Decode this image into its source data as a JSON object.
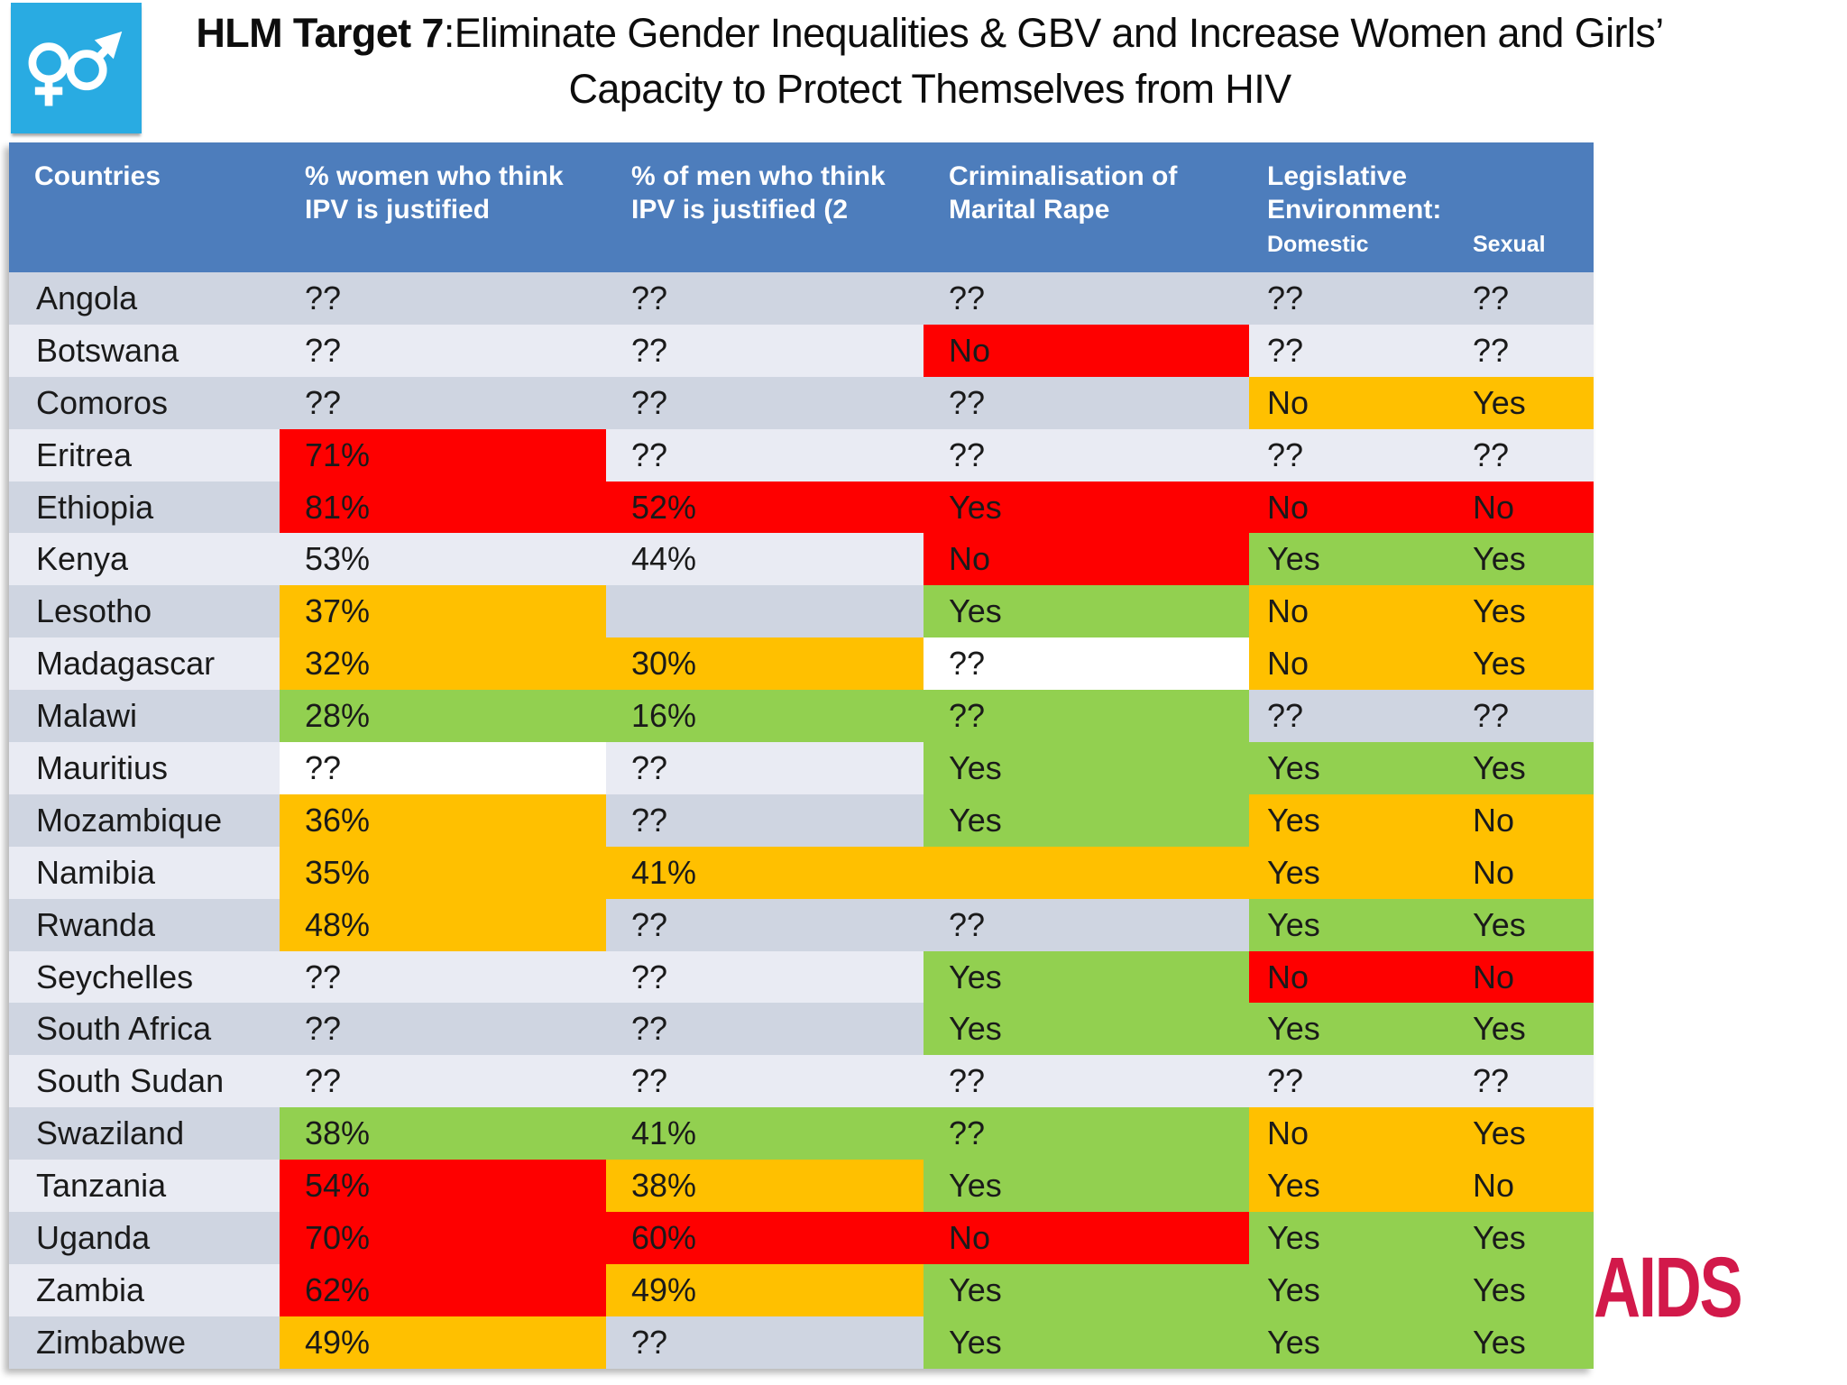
{
  "title": {
    "bold": "HLM Target 7",
    "line1_rest": ":Eliminate Gender Inequalities & GBV and Increase Women and Girls’",
    "line2": "Capacity to Protect Themselves from HIV"
  },
  "icon": {
    "name": "interlocked-female-male-gender-symbols"
  },
  "logo": {
    "text": "AIDS"
  },
  "palette": {
    "header_blue": "#4D7DBC",
    "row_dark": "#CFD5E1",
    "row_light": "#E9EBF3",
    "red": "#FE0000",
    "orange": "#FFC000",
    "green": "#92D050",
    "white": "#FFFFFF",
    "icon_blue": "#29ABE2",
    "logo_red": "#D2194A",
    "cell_text": "#1A1A1A"
  },
  "chart_data": {
    "type": "table",
    "title": "HLM Target 7:Eliminate Gender Inequalities & GBV and Increase Women and Girls’ Capacity to Protect Themselves from HIV",
    "header": {
      "countries": "Countries",
      "women": "% women who think IPV is justified",
      "men": "% of men who think IPV is justified (2",
      "rape": "Criminalisation of Marital Rape",
      "legislative": "Legislative Environment:",
      "domestic": "Domestic",
      "sexual": "Sexual"
    },
    "color_meaning_note": "",
    "rows": [
      {
        "country": "Angola",
        "women": {
          "v": "??",
          "c": ""
        },
        "men": {
          "v": "??",
          "c": ""
        },
        "rape": {
          "v": "??",
          "c": ""
        },
        "legislative": {
          "domestic": "??",
          "sexual": "??",
          "c": ""
        }
      },
      {
        "country": "Botswana",
        "women": {
          "v": "??",
          "c": ""
        },
        "men": {
          "v": "??",
          "c": ""
        },
        "rape": {
          "v": "No",
          "c": "red"
        },
        "legislative": {
          "domestic": "??",
          "sexual": "??",
          "c": ""
        }
      },
      {
        "country": "Comoros",
        "women": {
          "v": "??",
          "c": ""
        },
        "men": {
          "v": "??",
          "c": ""
        },
        "rape": {
          "v": "??",
          "c": ""
        },
        "legislative": {
          "domestic": "No",
          "sexual": "Yes",
          "c": "orange"
        }
      },
      {
        "country": "Eritrea",
        "women": {
          "v": "71%",
          "c": "red"
        },
        "men": {
          "v": "??",
          "c": ""
        },
        "rape": {
          "v": "??",
          "c": ""
        },
        "legislative": {
          "domestic": "??",
          "sexual": "??",
          "c": ""
        }
      },
      {
        "country": "Ethiopia",
        "women": {
          "v": "81%",
          "c": "red"
        },
        "men": {
          "v": "52%",
          "c": "red"
        },
        "rape": {
          "v": "Yes",
          "c": "red"
        },
        "legislative": {
          "domestic": "No",
          "sexual": "No",
          "c": "red"
        }
      },
      {
        "country": "Kenya",
        "women": {
          "v": "53%",
          "c": ""
        },
        "men": {
          "v": "44%",
          "c": ""
        },
        "rape": {
          "v": "No",
          "c": "red"
        },
        "legislative": {
          "domestic": "Yes",
          "sexual": "Yes",
          "c": "green"
        }
      },
      {
        "country": "Lesotho",
        "women": {
          "v": "37%",
          "c": "orange"
        },
        "men": {
          "v": "",
          "c": ""
        },
        "rape": {
          "v": "Yes",
          "c": "green"
        },
        "legislative": {
          "domestic": "No",
          "sexual": "Yes",
          "c": "orange"
        }
      },
      {
        "country": "Madagascar",
        "women": {
          "v": "32%",
          "c": "orange"
        },
        "men": {
          "v": "30%",
          "c": "orange"
        },
        "rape": {
          "v": "??",
          "c": "white"
        },
        "legislative": {
          "domestic": "No",
          "sexual": "Yes",
          "c": "orange"
        }
      },
      {
        "country": "Malawi",
        "women": {
          "v": "28%",
          "c": "green"
        },
        "men": {
          "v": "16%",
          "c": "green"
        },
        "rape": {
          "v": "??",
          "c": "green"
        },
        "legislative": {
          "domestic": "??",
          "sexual": "??",
          "c": ""
        }
      },
      {
        "country": "Mauritius",
        "women": {
          "v": "??",
          "c": "white"
        },
        "men": {
          "v": "??",
          "c": ""
        },
        "rape": {
          "v": "Yes",
          "c": "green"
        },
        "legislative": {
          "domestic": "Yes",
          "sexual": "Yes",
          "c": "green"
        }
      },
      {
        "country": "Mozambique",
        "women": {
          "v": "36%",
          "c": "orange"
        },
        "men": {
          "v": "??",
          "c": ""
        },
        "rape": {
          "v": "Yes",
          "c": "green"
        },
        "legislative": {
          "domestic": "Yes",
          "sexual": "No",
          "c": "orange"
        }
      },
      {
        "country": "Namibia",
        "women": {
          "v": "35%",
          "c": "orange"
        },
        "men": {
          "v": "41%",
          "c": "orange"
        },
        "rape": {
          "v": "",
          "c": "orange"
        },
        "legislative": {
          "domestic": "Yes",
          "sexual": "No",
          "c": "orange"
        }
      },
      {
        "country": "Rwanda",
        "women": {
          "v": "48%",
          "c": "orange"
        },
        "men": {
          "v": "??",
          "c": ""
        },
        "rape": {
          "v": "??",
          "c": ""
        },
        "legislative": {
          "domestic": "Yes",
          "sexual": "Yes",
          "c": "green"
        }
      },
      {
        "country": "Seychelles",
        "women": {
          "v": "??",
          "c": ""
        },
        "men": {
          "v": "??",
          "c": ""
        },
        "rape": {
          "v": "Yes",
          "c": "green"
        },
        "legislative": {
          "domestic": "No",
          "sexual": "No",
          "c": "red"
        }
      },
      {
        "country": "South Africa",
        "women": {
          "v": "??",
          "c": ""
        },
        "men": {
          "v": "??",
          "c": ""
        },
        "rape": {
          "v": "Yes",
          "c": "green"
        },
        "legislative": {
          "domestic": "Yes",
          "sexual": "Yes",
          "c": "green"
        }
      },
      {
        "country": "South Sudan",
        "women": {
          "v": "??",
          "c": ""
        },
        "men": {
          "v": "??",
          "c": ""
        },
        "rape": {
          "v": "??",
          "c": ""
        },
        "legislative": {
          "domestic": "??",
          "sexual": "??",
          "c": ""
        }
      },
      {
        "country": "Swaziland",
        "women": {
          "v": "38%",
          "c": "green"
        },
        "men": {
          "v": "41%",
          "c": "green"
        },
        "rape": {
          "v": "??",
          "c": "green"
        },
        "legislative": {
          "domestic": "No",
          "sexual": "Yes",
          "c": "orange"
        }
      },
      {
        "country": "Tanzania",
        "women": {
          "v": "54%",
          "c": "red"
        },
        "men": {
          "v": "38%",
          "c": "orange"
        },
        "rape": {
          "v": "Yes",
          "c": "green"
        },
        "legislative": {
          "domestic": "Yes",
          "sexual": "No",
          "c": "orange"
        }
      },
      {
        "country": "Uganda",
        "women": {
          "v": "70%",
          "c": "red"
        },
        "men": {
          "v": "60%",
          "c": "red"
        },
        "rape": {
          "v": "No",
          "c": "red"
        },
        "legislative": {
          "domestic": "Yes",
          "sexual": "Yes",
          "c": "green"
        }
      },
      {
        "country": "Zambia",
        "women": {
          "v": "62%",
          "c": "red"
        },
        "men": {
          "v": "49%",
          "c": "orange"
        },
        "rape": {
          "v": "Yes",
          "c": "green"
        },
        "legislative": {
          "domestic": "Yes",
          "sexual": "Yes",
          "c": "green"
        }
      },
      {
        "country": "Zimbabwe",
        "women": {
          "v": "49%",
          "c": "orange"
        },
        "men": {
          "v": "??",
          "c": ""
        },
        "rape": {
          "v": "Yes",
          "c": "green"
        },
        "legislative": {
          "domestic": "Yes",
          "sexual": "Yes",
          "c": "green"
        }
      }
    ]
  }
}
